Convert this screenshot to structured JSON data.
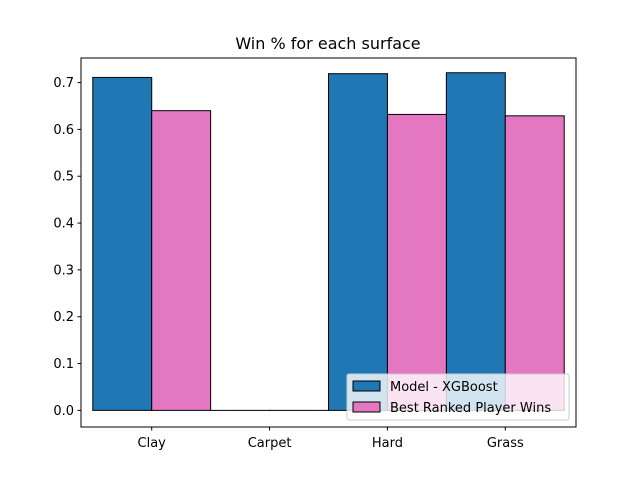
{
  "chart_data": {
    "type": "bar",
    "title": "Win % for each surface",
    "xlabel": "",
    "ylabel": "",
    "categories": [
      "Clay",
      "Carpet",
      "Hard",
      "Grass"
    ],
    "series": [
      {
        "name": "Model - XGBoost",
        "values": [
          0.711,
          0.0,
          0.719,
          0.721
        ],
        "color": "#1f77b4"
      },
      {
        "name": "Best Ranked Player Wins",
        "values": [
          0.64,
          0.0,
          0.632,
          0.629
        ],
        "color": "#e377c2"
      }
    ],
    "ylim": [
      -0.0355,
      0.7525
    ],
    "yticks": [
      0.0,
      0.1,
      0.2,
      0.3,
      0.4,
      0.5,
      0.6,
      0.7
    ],
    "ytick_labels": [
      "0.0",
      "0.1",
      "0.2",
      "0.3",
      "0.4",
      "0.5",
      "0.6",
      "0.7"
    ],
    "grid": false,
    "legend_position": "lower-right",
    "edge_color": "#000000"
  }
}
